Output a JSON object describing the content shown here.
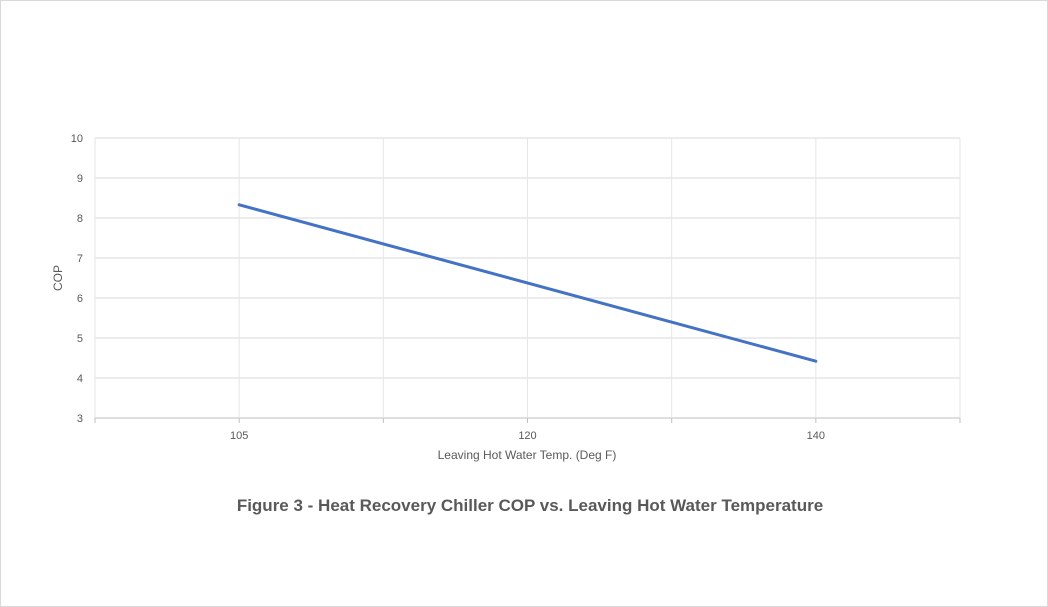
{
  "chart_data": {
    "type": "line",
    "title": "",
    "caption": "Figure 3 - Heat Recovery Chiller COP vs. Leaving Hot Water Temperature",
    "xlabel": "Leaving Hot Water Temp. (Deg F)",
    "ylabel": "COP",
    "x_ticks": [
      "105",
      "120",
      "140"
    ],
    "y_ticks": [
      "3",
      "4",
      "5",
      "6",
      "7",
      "8",
      "9",
      "10"
    ],
    "ylim": [
      3,
      10
    ],
    "grid": true,
    "legend": "none",
    "series": [
      {
        "color": "#4472c4",
        "x": [
          105,
          140
        ],
        "y": [
          8.33,
          4.42
        ]
      }
    ]
  }
}
